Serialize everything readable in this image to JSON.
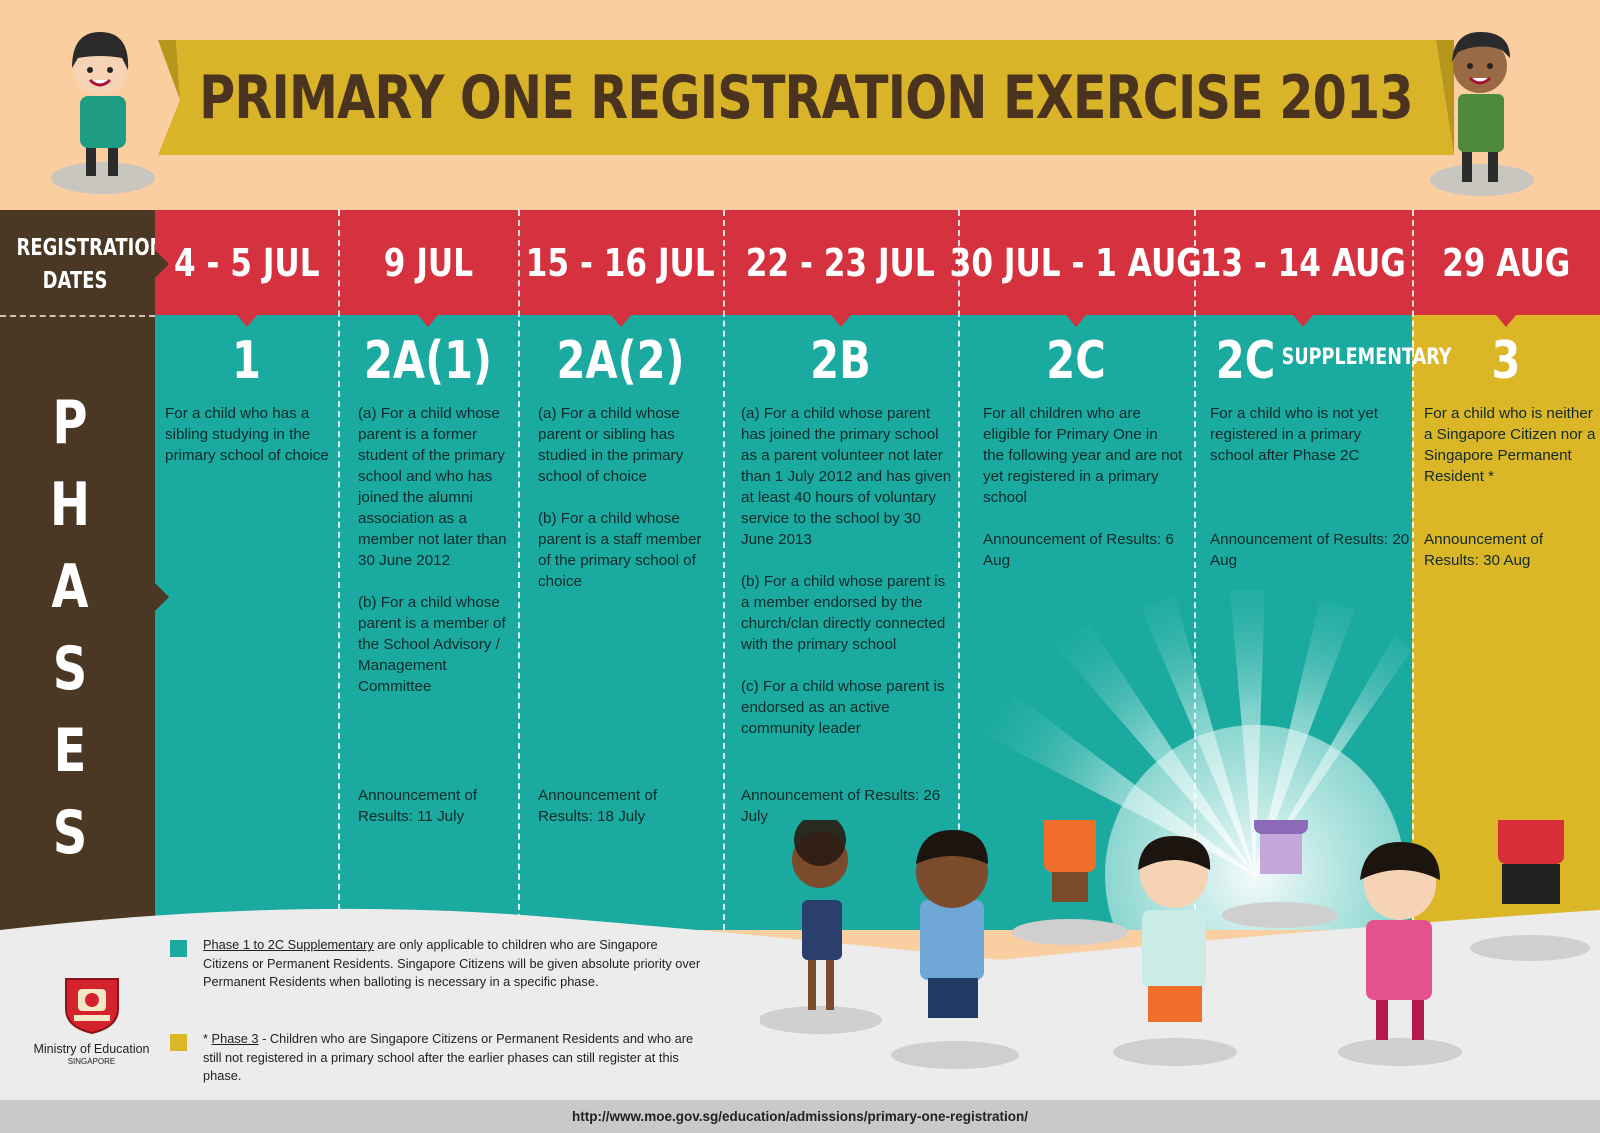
{
  "header": {
    "title": "PRIMARY ONE REGISTRATION EXERCISE 2013"
  },
  "left": {
    "registration_label": "REGISTRATION\nDATES",
    "phases_label": [
      "P",
      "H",
      "A",
      "S",
      "E",
      "S"
    ]
  },
  "phases": [
    {
      "date": "4 - 5 JUL",
      "code": "1",
      "code_suffix": "",
      "desc": [
        "For a child who has a sibling studying in the primary school of choice"
      ],
      "announcement": ""
    },
    {
      "date": "9 JUL",
      "code": "2A(1)",
      "code_suffix": "",
      "desc": [
        "(a) For a child whose parent is a former student of the primary school and who has joined the alumni association as a member not later than 30 June 2012",
        "(b) For a child whose parent is a member of the School Advisory / Management Committee"
      ],
      "announcement": "Announcement of Results: 11 July"
    },
    {
      "date": "15 - 16 JUL",
      "code": "2A(2)",
      "code_suffix": "",
      "desc": [
        "(a) For a child whose parent or sibling has studied in the primary school of choice",
        "(b) For a child whose parent is a staff member of the primary school of choice"
      ],
      "announcement": "Announcement of Results: 18 July"
    },
    {
      "date": "22 - 23 JUL",
      "code": "2B",
      "code_suffix": "",
      "desc": [
        "(a) For a child whose parent has joined the primary school as a parent volunteer not later than 1 July 2012 and has given at least 40 hours of voluntary service to the school by 30 June 2013",
        "(b) For a child whose parent is a member endorsed by the church/clan directly connected with the primary school",
        "(c) For a child whose parent is endorsed as an active community leader"
      ],
      "announcement": "Announcement of Results: 26 July"
    },
    {
      "date": "30 JUL  - 1 AUG",
      "code": "2C",
      "code_suffix": "",
      "desc": [
        "For all children who are eligible for Primary One in the following year and are not yet registered in a primary school"
      ],
      "announcement": "Announcement of Results: 6 Aug"
    },
    {
      "date": "13 - 14 AUG",
      "code": "2C",
      "code_suffix": "SUPPLEMENTARY",
      "desc": [
        "For a child who is not yet registered in a primary school after Phase 2C"
      ],
      "announcement": "Announcement of Results: 20 Aug"
    },
    {
      "date": "29 AUG",
      "code": "3",
      "code_suffix": "",
      "desc": [
        "For a child who is neither a Singapore Citizen nor a Singapore Permanent Resident *"
      ],
      "announcement": "Announcement of Results: 30 Aug"
    }
  ],
  "notes": {
    "note1_link": "Phase 1 to 2C Supplementary",
    "note1_text": " are only applicable to children who are Singapore Citizens or  Permanent Residents. Singapore Citizens will be given absolute priority over Permanent Residents when balloting is necessary in a specific phase.",
    "note2_star": "* ",
    "note2_link": "Phase 3",
    "note2_text": " - Children who are Singapore Citizens or Permanent Residents and who are still not registered in a primary school after the earlier phases can still register at this phase."
  },
  "ministry": {
    "name": "Ministry of Education",
    "sub": "SINGAPORE"
  },
  "footer": {
    "url": "http://www.moe.gov.sg/education/admissions/primary-one-registration/"
  },
  "colors": {
    "teal": "#1baaa0",
    "red": "#d5313f",
    "brown": "#4a3724",
    "yellow": "#dbb627",
    "peach": "#fbcea0"
  }
}
